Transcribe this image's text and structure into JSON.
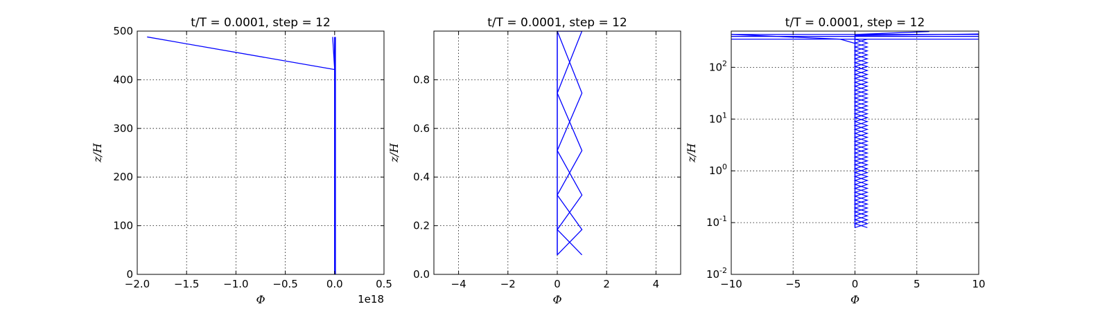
{
  "chart_data": [
    {
      "type": "line",
      "title": "t/T = 0.0001, step = 12",
      "xlabel": "Φ",
      "ylabel": "z/H",
      "x_offset_label": "1e18",
      "xlim": [
        -2.0,
        0.5
      ],
      "ylim": [
        0,
        500
      ],
      "yscale": "linear",
      "xticks": [
        -2.0,
        -1.5,
        -1.0,
        -0.5,
        0.0,
        0.5
      ],
      "xtick_labels": [
        "−2.0",
        "−1.5",
        "−1.0",
        "−0.5",
        "0.0",
        "0.5"
      ],
      "yticks": [
        0,
        100,
        200,
        300,
        400,
        500
      ],
      "ytick_labels": [
        "0",
        "100",
        "200",
        "300",
        "400",
        "500"
      ],
      "grid": true,
      "color": "#0000ff",
      "series": [
        {
          "x": [
            -1.9,
            0.0
          ],
          "y": [
            488,
            421
          ]
        },
        {
          "x": [
            0.0,
            0.0
          ],
          "y": [
            0.08,
            488
          ]
        },
        {
          "x": [
            0.0,
            0.0
          ],
          "y": [
            0.08,
            488
          ]
        },
        {
          "x": [
            -0.02,
            0.0
          ],
          "y": [
            488,
            421
          ]
        },
        {
          "x": [
            0.008,
            0.008
          ],
          "y": [
            0.08,
            488
          ]
        }
      ]
    },
    {
      "type": "line",
      "title": "t/T = 0.0001, step = 12",
      "xlabel": "Φ",
      "ylabel": "z/H",
      "xlim": [
        -5,
        5
      ],
      "ylim": [
        0.0,
        1.0
      ],
      "yscale": "linear",
      "xticks": [
        -4,
        -2,
        0,
        2,
        4
      ],
      "xtick_labels": [
        "−4",
        "−2",
        "0",
        "2",
        "4"
      ],
      "yticks": [
        0.0,
        0.2,
        0.4,
        0.6,
        0.8
      ],
      "ytick_labels": [
        "0.0",
        "0.2",
        "0.4",
        "0.6",
        "0.8"
      ],
      "grid": true,
      "color": "#0000ff",
      "series": [
        {
          "x": [
            0,
            0
          ],
          "y": [
            0.08,
            1.0
          ]
        },
        {
          "x": [
            0,
            0
          ],
          "y": [
            0.08,
            1.0
          ]
        },
        {
          "x": [
            1,
            0,
            1,
            0,
            1,
            0,
            1,
            0,
            0.8
          ],
          "y": [
            0.08,
            0.184,
            0.326,
            0.509,
            0.745,
            1.0,
            1.0,
            1.0,
            1.0
          ]
        },
        {
          "x": [
            0,
            1,
            0,
            1,
            0,
            1,
            0,
            0.8
          ],
          "y": [
            0.08,
            0.184,
            0.326,
            0.509,
            0.745,
            1.0,
            1.0,
            1.0
          ]
        }
      ]
    },
    {
      "type": "line",
      "title": "t/T = 0.0001, step = 12",
      "xlabel": "Φ",
      "ylabel": "z/H",
      "xlim": [
        -10,
        10
      ],
      "ylim": [
        0.01,
        500
      ],
      "yscale": "log",
      "xticks": [
        -10,
        -5,
        0,
        5,
        10
      ],
      "xtick_labels": [
        "−10",
        "−5",
        "0",
        "5",
        "10"
      ],
      "yticks": [
        0.01,
        0.1,
        1,
        10,
        100
      ],
      "ytick_labels": [
        {
          "base": "10",
          "exp": "-2"
        },
        {
          "base": "10",
          "exp": "-1"
        },
        {
          "base": "10",
          "exp": "0"
        },
        {
          "base": "10",
          "exp": "1"
        },
        {
          "base": "10",
          "exp": "2"
        }
      ],
      "grid": true,
      "color": "#0000ff",
      "zigzag": {
        "z_start": 0.08,
        "z_end": 350,
        "n": 48,
        "amplitude": 1
      },
      "series": [
        {
          "x": [
            0,
            0
          ],
          "y": [
            0.08,
            430
          ]
        },
        {
          "x": [
            0,
            0
          ],
          "y": [
            0.08,
            430
          ]
        },
        {
          "x": [
            -10,
            10
          ],
          "y": [
            430,
            430
          ]
        },
        {
          "x": [
            -10,
            10
          ],
          "y": [
            395,
            395
          ]
        },
        {
          "x": [
            -10,
            10
          ],
          "y": [
            350,
            350
          ]
        },
        {
          "x": [
            -10,
            -1.2,
            0
          ],
          "y": [
            430,
            350,
            290
          ]
        },
        {
          "x": [
            0,
            6
          ],
          "y": [
            430,
            490
          ]
        },
        {
          "x": [
            0,
            10
          ],
          "y": [
            410,
            440
          ]
        }
      ]
    }
  ]
}
